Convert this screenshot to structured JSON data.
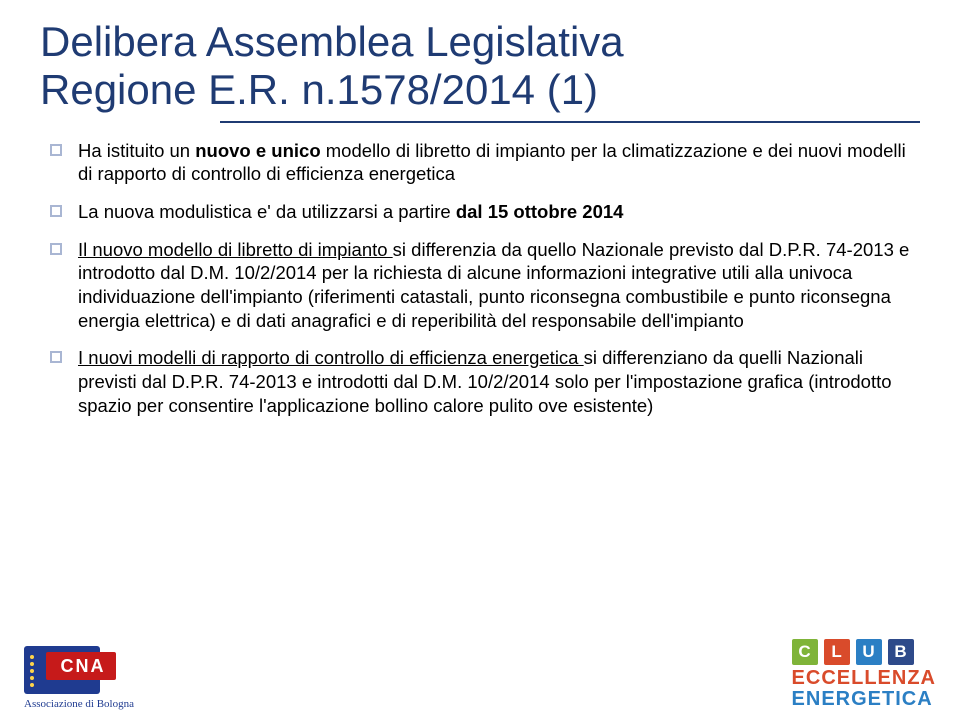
{
  "title_line1": "Delibera Assemblea Legislativa",
  "title_line2": "Regione E.R. n.1578/2014 (1)",
  "bullets": {
    "b1_pre": "Ha istituito un ",
    "b1_bold": "nuovo e unico",
    "b1_post": " modello di libretto di impianto per la climatizzazione e  dei nuovi modelli di rapporto di controllo di efficienza energetica",
    "b2_pre": "La nuova modulistica e' da utilizzarsi a partire ",
    "b2_bold": "dal 15 ottobre 2014",
    "b3_u": "Il nuovo modello di libretto di impianto ",
    "b3_rest": "si differenzia da quello Nazionale previsto dal D.P.R. 74-2013 e introdotto dal D.M. 10/2/2014 per la richiesta di alcune informazioni integrative utili alla univoca individuazione dell'impianto (riferimenti catastali, punto riconsegna combustibile e punto riconsegna energia elettrica) e di dati anagrafici e di reperibilità del responsabile dell'impianto",
    "b4_u": "I nuovi modelli di rapporto di controllo di efficienza energetica ",
    "b4_rest": "si differenziano da quelli Nazionali previsti dal D.P.R. 74-2013 e introdotti dal D.M. 10/2/2014 solo per l'impostazione grafica (introdotto spazio per consentire l'applicazione bollino calore pulito ove esistente)"
  },
  "cna": {
    "letters": "CNA",
    "sub": "Associazione di Bologna"
  },
  "club": {
    "letters": [
      "C",
      "L",
      "U",
      "B"
    ],
    "line2": "ECCELLENZA",
    "line3": "ENERGETICA"
  },
  "colors": {
    "title": "#1f3b73",
    "underline": "#1f3b73",
    "bullet_border": "#a9b6d3",
    "cna_blue": "#1f3b90",
    "cna_red": "#c61a1a",
    "club_green": "#7fb439",
    "club_red": "#d94b2b",
    "club_blue": "#2b7fc4",
    "club_dark": "#2e4a8a"
  }
}
